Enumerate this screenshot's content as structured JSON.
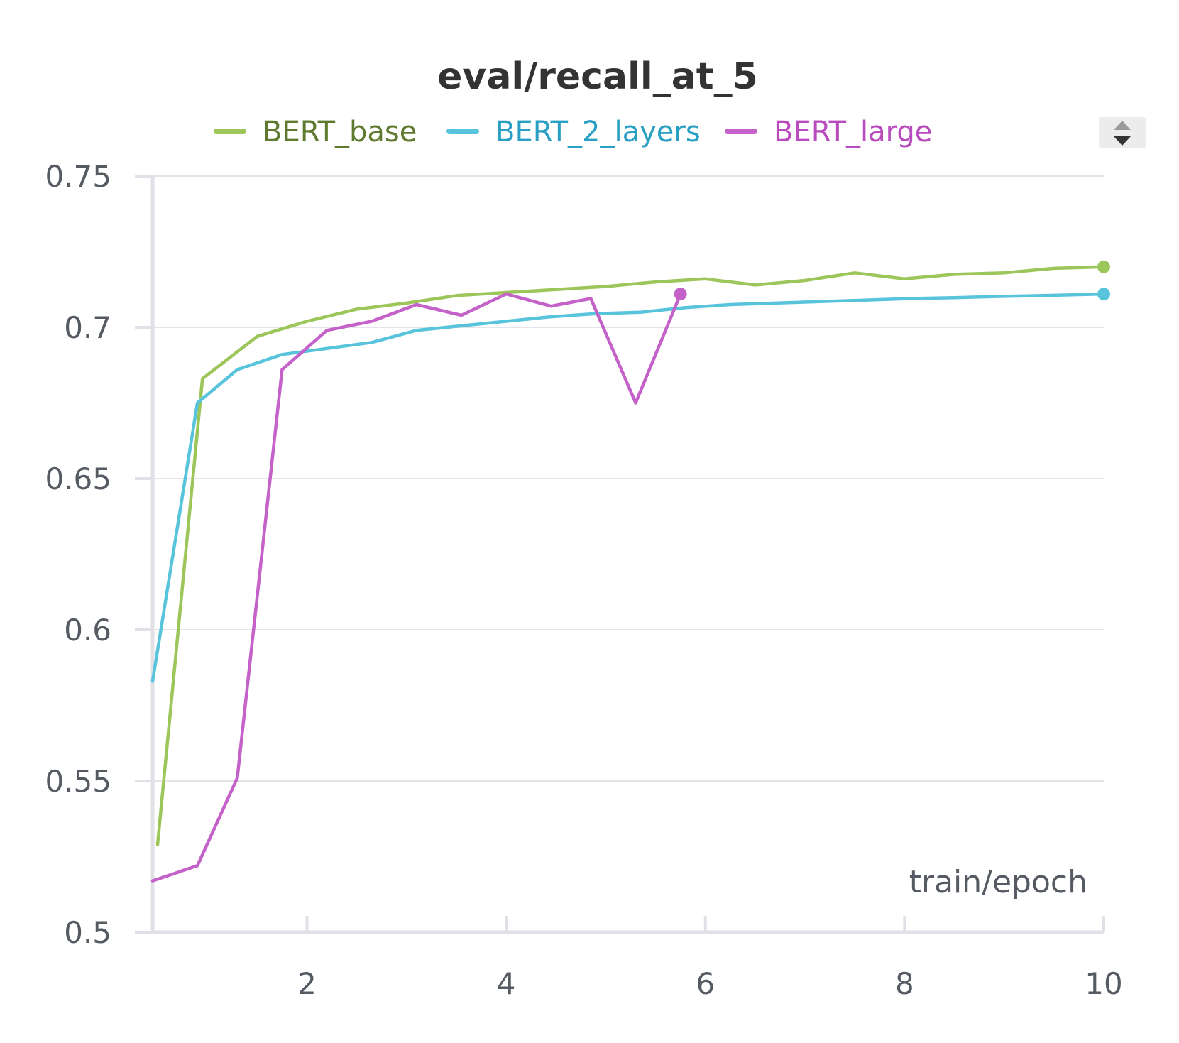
{
  "chart_data": {
    "type": "line",
    "title": "eval/recall_at_5",
    "xlabel": "train/epoch",
    "ylabel": "",
    "xlim": [
      0.45,
      10
    ],
    "ylim": [
      0.5,
      0.75
    ],
    "x_ticks": [
      2,
      4,
      6,
      8,
      10
    ],
    "y_ticks": [
      0.5,
      0.55,
      0.6,
      0.65,
      0.7,
      0.75
    ],
    "y_tick_labels": [
      "0.5",
      "0.55",
      "0.6",
      "0.65",
      "0.7",
      "0.75"
    ],
    "x_tick_labels": [
      "2",
      "4",
      "6",
      "8",
      "10"
    ],
    "grid": true,
    "legend": "top",
    "series": [
      {
        "name": "BERT_base",
        "color": "#9cc55a",
        "text_color": "#5f7a2e",
        "x": [
          0.5,
          0.95,
          1.5,
          2.0,
          2.5,
          3.0,
          3.5,
          4.0,
          4.5,
          5.0,
          5.5,
          6.0,
          6.5,
          7.0,
          7.5,
          8.0,
          8.5,
          9.0,
          9.5,
          10.0
        ],
        "y": [
          0.529,
          0.683,
          0.697,
          0.702,
          0.706,
          0.708,
          0.7105,
          0.7115,
          0.7125,
          0.7135,
          0.715,
          0.716,
          0.714,
          0.7155,
          0.718,
          0.716,
          0.7175,
          0.718,
          0.7195,
          0.72
        ]
      },
      {
        "name": "BERT_2_layers",
        "color": "#58c4dc",
        "text_color": "#2a9fc4",
        "x": [
          0.45,
          0.9,
          1.3,
          1.75,
          2.2,
          2.65,
          3.1,
          3.55,
          4.0,
          4.45,
          4.9,
          5.35,
          5.8,
          6.25,
          6.7,
          7.15,
          7.6,
          8.05,
          8.5,
          8.95,
          9.4,
          10.0
        ],
        "y": [
          0.583,
          0.675,
          0.686,
          0.691,
          0.693,
          0.695,
          0.699,
          0.7005,
          0.702,
          0.7035,
          0.7045,
          0.705,
          0.7065,
          0.7075,
          0.708,
          0.7085,
          0.709,
          0.7095,
          0.7098,
          0.7102,
          0.7105,
          0.711
        ]
      },
      {
        "name": "BERT_large",
        "color": "#c462c9",
        "text_color": "#b84bbe",
        "x": [
          0.45,
          0.9,
          1.3,
          1.75,
          2.2,
          2.65,
          3.1,
          3.55,
          4.0,
          4.45,
          4.85,
          5.3,
          5.75
        ],
        "y": [
          0.517,
          0.522,
          0.551,
          0.686,
          0.699,
          0.702,
          0.7075,
          0.704,
          0.711,
          0.707,
          0.7095,
          0.675,
          0.711
        ]
      }
    ]
  },
  "legend_scroll_icon": "sort-arrows-icon"
}
